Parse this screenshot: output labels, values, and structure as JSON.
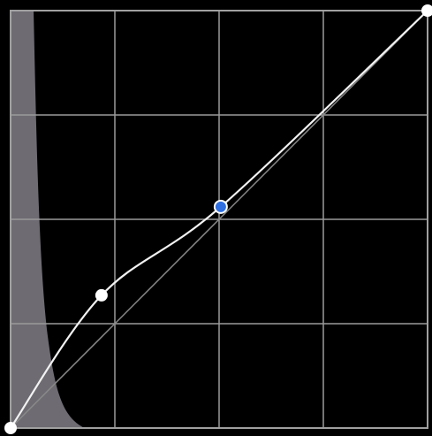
{
  "curve": {
    "points": [
      {
        "x": 0,
        "y": 0
      },
      {
        "x": 0.218,
        "y": 0.318
      },
      {
        "x": 0.504,
        "y": 0.53
      },
      {
        "x": 1,
        "y": 1
      }
    ],
    "selected_point": 2,
    "point_color": "#ffffff",
    "selected_color": "#2f6fe0"
  }
}
